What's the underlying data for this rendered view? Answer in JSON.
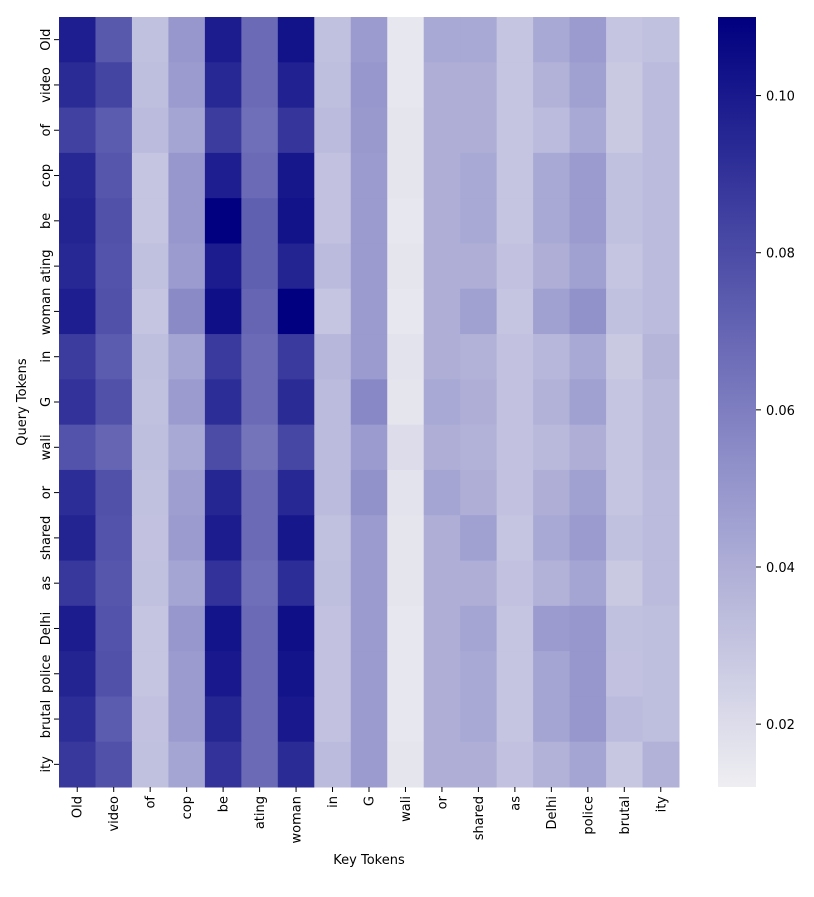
{
  "chart_data": {
    "type": "heatmap",
    "title": "",
    "xlabel": "Key Tokens",
    "ylabel": "Query Tokens",
    "x_tokens": [
      "Old",
      "video",
      "of",
      "cop",
      "be",
      "ating",
      "woman",
      "in",
      "G",
      "wali",
      "or",
      "shared",
      "as",
      "Delhi",
      "police",
      "brutal",
      "ity"
    ],
    "y_tokens": [
      "Old",
      "video",
      "of",
      "cop",
      "be",
      "ating",
      "woman",
      "in",
      "G",
      "wali",
      "or",
      "shared",
      "as",
      "Delhi",
      "police",
      "brutal",
      "ity"
    ],
    "values": [
      [
        0.098,
        0.075,
        0.032,
        0.05,
        0.099,
        0.068,
        0.103,
        0.032,
        0.048,
        0.015,
        0.042,
        0.042,
        0.03,
        0.042,
        0.048,
        0.03,
        0.032
      ],
      [
        0.093,
        0.083,
        0.033,
        0.048,
        0.094,
        0.068,
        0.097,
        0.033,
        0.05,
        0.015,
        0.04,
        0.04,
        0.03,
        0.038,
        0.046,
        0.028,
        0.034
      ],
      [
        0.084,
        0.074,
        0.034,
        0.044,
        0.086,
        0.066,
        0.089,
        0.034,
        0.049,
        0.016,
        0.04,
        0.04,
        0.03,
        0.034,
        0.042,
        0.028,
        0.034
      ],
      [
        0.094,
        0.076,
        0.03,
        0.05,
        0.098,
        0.068,
        0.101,
        0.031,
        0.048,
        0.016,
        0.04,
        0.042,
        0.03,
        0.042,
        0.048,
        0.032,
        0.034
      ],
      [
        0.096,
        0.078,
        0.03,
        0.05,
        0.11,
        0.072,
        0.103,
        0.031,
        0.048,
        0.015,
        0.04,
        0.042,
        0.03,
        0.042,
        0.048,
        0.032,
        0.034
      ],
      [
        0.094,
        0.077,
        0.032,
        0.048,
        0.099,
        0.072,
        0.096,
        0.034,
        0.048,
        0.016,
        0.04,
        0.04,
        0.031,
        0.04,
        0.046,
        0.03,
        0.034
      ],
      [
        0.098,
        0.078,
        0.03,
        0.055,
        0.104,
        0.07,
        0.11,
        0.03,
        0.048,
        0.015,
        0.04,
        0.046,
        0.03,
        0.046,
        0.052,
        0.032,
        0.034
      ],
      [
        0.086,
        0.074,
        0.033,
        0.044,
        0.087,
        0.068,
        0.087,
        0.036,
        0.048,
        0.017,
        0.04,
        0.038,
        0.031,
        0.036,
        0.042,
        0.028,
        0.037
      ],
      [
        0.09,
        0.078,
        0.032,
        0.048,
        0.092,
        0.068,
        0.093,
        0.034,
        0.056,
        0.016,
        0.042,
        0.04,
        0.031,
        0.038,
        0.046,
        0.03,
        0.035
      ],
      [
        0.077,
        0.07,
        0.033,
        0.042,
        0.08,
        0.064,
        0.082,
        0.034,
        0.048,
        0.02,
        0.04,
        0.038,
        0.031,
        0.035,
        0.04,
        0.03,
        0.035
      ],
      [
        0.092,
        0.078,
        0.032,
        0.047,
        0.095,
        0.068,
        0.094,
        0.034,
        0.052,
        0.017,
        0.044,
        0.04,
        0.031,
        0.04,
        0.046,
        0.03,
        0.034
      ],
      [
        0.096,
        0.077,
        0.031,
        0.048,
        0.099,
        0.068,
        0.101,
        0.032,
        0.048,
        0.016,
        0.04,
        0.046,
        0.03,
        0.042,
        0.048,
        0.032,
        0.034
      ],
      [
        0.088,
        0.076,
        0.032,
        0.044,
        0.09,
        0.066,
        0.092,
        0.033,
        0.048,
        0.016,
        0.04,
        0.04,
        0.031,
        0.038,
        0.044,
        0.028,
        0.034
      ],
      [
        0.099,
        0.077,
        0.03,
        0.05,
        0.102,
        0.068,
        0.104,
        0.031,
        0.048,
        0.015,
        0.04,
        0.044,
        0.03,
        0.048,
        0.05,
        0.032,
        0.033
      ],
      [
        0.096,
        0.078,
        0.03,
        0.048,
        0.1,
        0.068,
        0.102,
        0.031,
        0.048,
        0.015,
        0.04,
        0.042,
        0.03,
        0.044,
        0.05,
        0.031,
        0.033
      ],
      [
        0.092,
        0.074,
        0.031,
        0.048,
        0.095,
        0.068,
        0.1,
        0.031,
        0.048,
        0.015,
        0.04,
        0.042,
        0.03,
        0.044,
        0.05,
        0.034,
        0.033
      ],
      [
        0.088,
        0.078,
        0.032,
        0.044,
        0.09,
        0.068,
        0.093,
        0.034,
        0.048,
        0.016,
        0.04,
        0.04,
        0.031,
        0.038,
        0.044,
        0.029,
        0.038
      ]
    ],
    "vmin": 0.012,
    "vmax": 0.11,
    "colormap": {
      "low": "#eeeef2",
      "high": "#000080"
    },
    "colorbar_ticks": [
      0.02,
      0.04,
      0.06,
      0.08,
      0.1
    ],
    "colorbar_tick_labels": [
      "0.02",
      "0.04",
      "0.06",
      "0.08",
      "0.10"
    ]
  }
}
